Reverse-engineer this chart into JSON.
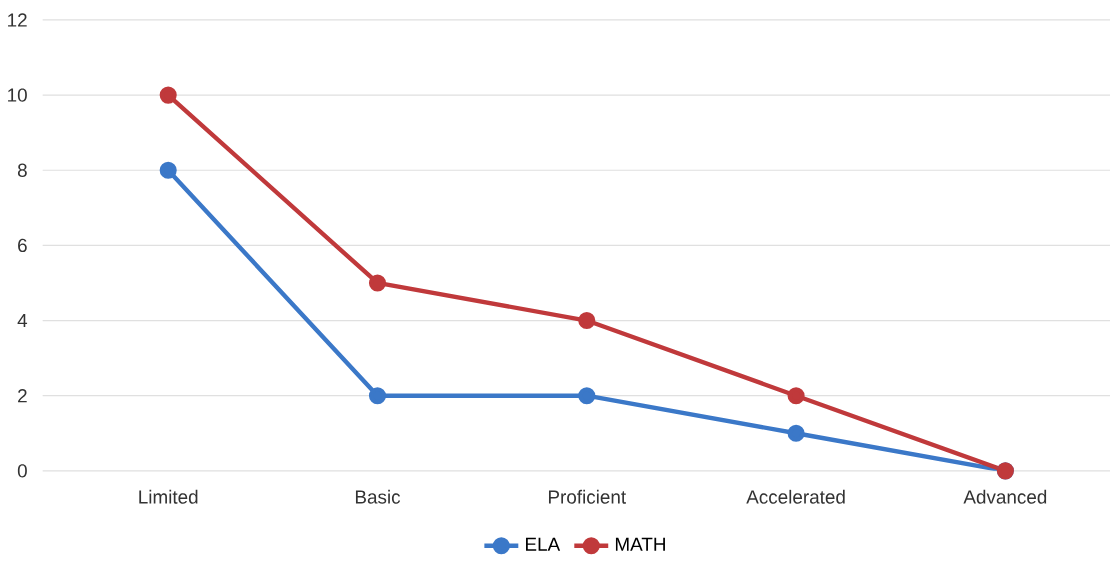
{
  "chart_data": {
    "type": "line",
    "categories": [
      "Limited",
      "Basic",
      "Proficient",
      "Accelerated",
      "Advanced"
    ],
    "series": [
      {
        "name": "ELA",
        "color": "#3b78c8",
        "values": [
          8,
          2,
          2,
          1,
          0
        ]
      },
      {
        "name": "MATH",
        "color": "#c0393b",
        "values": [
          10,
          5,
          4,
          2,
          0
        ]
      }
    ],
    "ylim": [
      0,
      12
    ],
    "yticks": [
      0,
      2,
      4,
      6,
      8,
      10,
      12
    ],
    "grid": "y",
    "legend": "bottom",
    "marker": "circle"
  }
}
